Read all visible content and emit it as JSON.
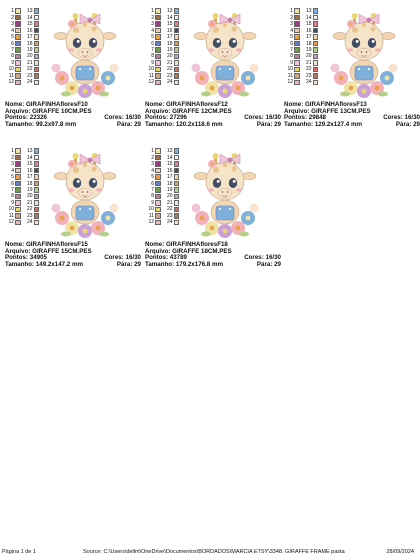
{
  "colors": {
    "swatch_palette": [
      "#efe3a6",
      "#9a6e4e",
      "#9d3b86",
      "#f5c9c0",
      "#e9a24c",
      "#6a7ec6",
      "#6f9d4c",
      "#c27ca8",
      "#efc6d8",
      "#e8d86f",
      "#c8a78b",
      "#f3b2b9"
    ],
    "swatch_right": [
      "#7fb0da",
      "#f3f3f3",
      "#e07f8e",
      "#444d66",
      "#f2d6b1",
      "#d6a26e",
      "#b4cf87",
      "#caa0d6",
      "#e9e6d9",
      "#d17060",
      "#ad7b5b",
      "#f8e3d0"
    ]
  },
  "swatch_numbers_left": [
    "1",
    "2",
    "3",
    "4",
    "5",
    "6",
    "7",
    "8",
    "9",
    "10",
    "11",
    "12"
  ],
  "swatch_numbers_right": [
    "13",
    "14",
    "15",
    "16",
    "17",
    "18",
    "19",
    "20",
    "21",
    "22",
    "23",
    "24"
  ],
  "designs": [
    {
      "nome": "Nome: GIRAFINHAfloresF10",
      "arquivo": "Arquivo: GIRAFFE 10CM.PES",
      "pontos": "Pontos: 22326",
      "cores": "Cores: 16/30",
      "tamanho": "Tamanho: 99.2x97.8 mm",
      "paras": "Pára: 29"
    },
    {
      "nome": "Nome: GIRAFINHAfloresF12",
      "arquivo": "Arquivo: GIRAFFE 12CM.PES",
      "pontos": "Pontos: 27296",
      "cores": "Cores: 16/30",
      "tamanho": "Tamanho: 120.2x118.6 mm",
      "paras": "Pára: 29"
    },
    {
      "nome": "Nome: GIRAFINHAfloresF13",
      "arquivo": "Arquivo: GIRAFFE 13CM.PES",
      "pontos": "Pontos: 29848",
      "cores": "Cores: 16/30",
      "tamanho": "Tamanho: 129.2x127.4 mm",
      "paras": "Pára: 29"
    },
    {
      "nome": "Nome: GIRAFINHAfloresF15",
      "arquivo": "Arquivo: GIRAFFE 15CM.PES",
      "pontos": "Pontos: 34905",
      "cores": "Cores: 16/30",
      "tamanho": "Tamanho: 149.2x147.2 mm",
      "paras": "Pára: 29"
    },
    {
      "nome": "Nome: GIRAFINHAfloresF18",
      "arquivo": "Arquivo: GIRAFFE 18CM.PES",
      "pontos": "Pontos: 43789",
      "cores": "Cores: 16/30",
      "tamanho": "Tamanho: 179.2x176.8 mm",
      "paras": "Pára: 29"
    }
  ],
  "footer": {
    "page": "Página 1 de 1",
    "source": "Source: C:\\Users\\dellm\\OneDrive\\Documentos\\BORDADOS\\MARCIA ETSY\\3348. GIRAFFE FRAME pasta",
    "date": "28/09/2024"
  }
}
